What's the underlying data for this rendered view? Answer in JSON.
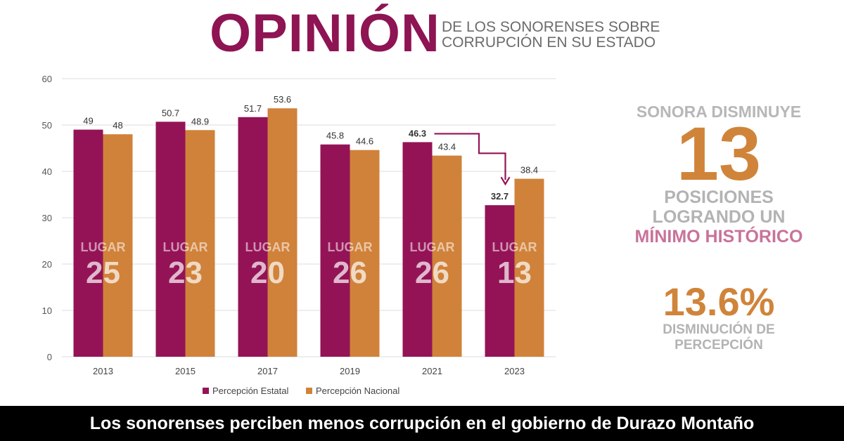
{
  "header": {
    "title": "OPINIÓN",
    "subtitle_line1": "DE LOS SONORENSES SOBRE",
    "subtitle_line2": "CORRUPCIÓN EN SU ESTADO"
  },
  "chart_data": {
    "type": "bar",
    "title": "",
    "xlabel": "",
    "ylabel": "",
    "categories": [
      "2013",
      "2015",
      "2017",
      "2019",
      "2021",
      "2023"
    ],
    "series": [
      {
        "name": "Percepción Estatal",
        "color": "#941356",
        "values": [
          49,
          50.7,
          51.7,
          45.8,
          46.3,
          32.7
        ],
        "labels": [
          "49",
          "50.7",
          "51.7",
          "45.8",
          "46.3",
          "32.7"
        ]
      },
      {
        "name": "Percepción Nacional",
        "color": "#d0823a",
        "values": [
          48,
          48.9,
          53.6,
          44.6,
          43.4,
          38.4
        ],
        "labels": [
          "48",
          "48.9",
          "53.6",
          "44.6",
          "43.4",
          "38.4"
        ]
      }
    ],
    "ylim": [
      0,
      60
    ],
    "yticks": [
      "0",
      "10",
      "20",
      "30",
      "40",
      "50",
      "60"
    ],
    "grid": true,
    "legend": "bottom",
    "annotations": {
      "lugar_label": "LUGAR",
      "lugar_values": [
        "25",
        "23",
        "20",
        "26",
        "26",
        "13"
      ],
      "arrow": {
        "from_category": "2021",
        "to_category": "2023",
        "color": "#941356"
      }
    }
  },
  "side_panel": {
    "line1": "SONORA DISMINUYE",
    "big_number": "13",
    "line2": "POSICIONES",
    "line3": "LOGRANDO UN",
    "line4": "MÍNIMO HISTÓRICO",
    "percent": "13.6%",
    "line5": "DISMINUCIÓN DE",
    "line6": "PERCEPCIÓN"
  },
  "footer": {
    "caption": "Los sonorenses perciben menos corrupción en el gobierno de Durazo Montaño"
  }
}
